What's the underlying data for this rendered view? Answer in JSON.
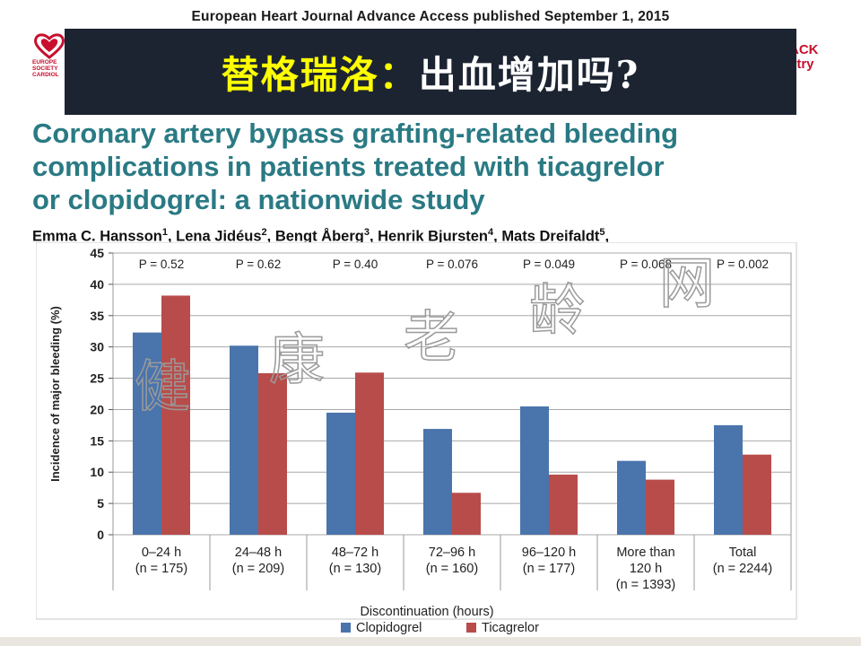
{
  "journal_header": "European Heart Journal Advance Access published September 1, 2015",
  "logos": {
    "left_text": [
      "EUROPE",
      "SOCIETY",
      "CARDIOL"
    ],
    "right_text": [
      "ACK",
      "stry"
    ]
  },
  "slide_title": {
    "part1": "替格瑞洛：",
    "part2": "出血增加吗?"
  },
  "paper_title": [
    "Coronary artery bypass grafting-related bleeding",
    "complications in patients treated with ticagrelor",
    "or clopidogrel: a nationwide study"
  ],
  "authors": [
    {
      "name": "Emma C. Hansson",
      "sup": "1"
    },
    {
      "name": "Lena Jidéus",
      "sup": "2"
    },
    {
      "name": "Bengt Åberg",
      "sup": "3"
    },
    {
      "name": "Henrik Bjursten",
      "sup": "4"
    },
    {
      "name": "Mats Dreifaldt",
      "sup": "5"
    }
  ],
  "watermark": [
    "健",
    "康",
    "老",
    "龄",
    "网"
  ],
  "colors": {
    "banner_bg": "#1c2432",
    "title_yellow": "#ffff00",
    "paper_title": "#2a7a84",
    "clopidogrel": "#4a74ac",
    "ticagrelor": "#b84c4a"
  },
  "chart_data": {
    "type": "bar",
    "categories": [
      [
        "0–24 h",
        "(n = 175)"
      ],
      [
        "24–48 h",
        "(n = 209)"
      ],
      [
        "48–72 h",
        "(n = 130)"
      ],
      [
        "72–96 h",
        "(n = 160)"
      ],
      [
        "96–120 h",
        "(n = 177)"
      ],
      [
        "More than",
        "120 h",
        "(n = 1393)"
      ],
      [
        "Total",
        "(n = 2244)"
      ]
    ],
    "series": [
      {
        "name": "Clopidogrel",
        "values": [
          32.3,
          30.2,
          19.5,
          16.9,
          20.5,
          11.8,
          17.5
        ]
      },
      {
        "name": "Ticagrelor",
        "values": [
          38.2,
          25.8,
          25.9,
          6.7,
          9.6,
          8.8,
          12.8
        ]
      }
    ],
    "p_values": [
      "P = 0.52",
      "P = 0.62",
      "P = 0.40",
      "P = 0.076",
      "P = 0.049",
      "P = 0.068",
      "P = 0.002"
    ],
    "xlabel": "Discontinuation (hours)",
    "ylabel": "Incidence of major bleeding (%)",
    "ylim": [
      0,
      45
    ],
    "yticks": [
      0,
      5,
      10,
      15,
      20,
      25,
      30,
      35,
      40,
      45
    ],
    "grid": true,
    "legend_position": "bottom-center"
  }
}
